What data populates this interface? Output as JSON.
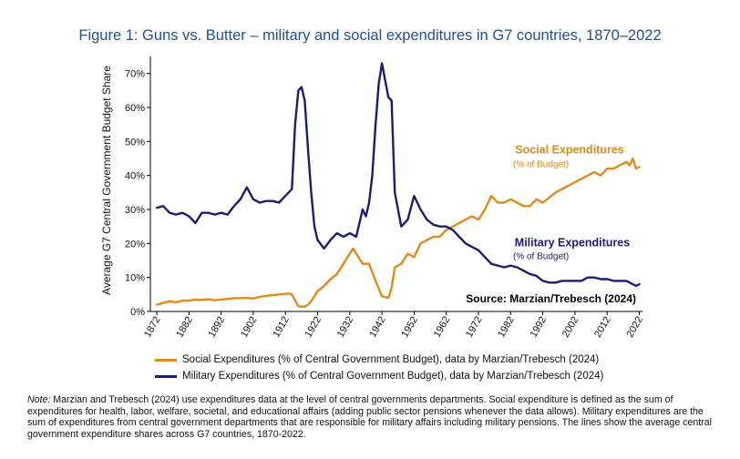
{
  "title": "Figure 1: Guns vs. Butter – military and social expenditures in G7 countries, 1870–2022",
  "legend": [
    {
      "label": "Social Expenditures (% of Central Government Budget), data by Marzian/Trebesch (2024)",
      "color": "#e08a1c"
    },
    {
      "label": "Military Expenditures (% of Central Government Budget), data by Marzian/Trebesch (2024)",
      "color": "#1c1c73"
    }
  ],
  "note": {
    "prefix": "Note:",
    "text": " Marzian and Trebesch (2024) use expenditures data at the level of central governments departments. Social expenditure is defined as the sum of expenditures for health, labor, welfare, societal, and educational affairs (adding public sector pensions whenever the data allows). Military expenditures are the sum of expenditures from central government departments that are responsible for military affairs including military pensions. The lines show the average central government expenditure shares across G7 countries, 1870-2022."
  },
  "chart_data": {
    "type": "line",
    "title": "Figure 1: Guns vs. Butter – military and social expenditures in G7 countries, 1870–2022",
    "xlabel": "",
    "ylabel": "Average G7 Central Government Budget Share",
    "xlim": [
      1870,
      2023
    ],
    "ylim": [
      0,
      75
    ],
    "x_ticks": [
      1872,
      1882,
      1892,
      1902,
      1912,
      1922,
      1932,
      1942,
      1952,
      1962,
      1972,
      1982,
      1992,
      2002,
      2012,
      2022
    ],
    "y_ticks": [
      0,
      10,
      20,
      30,
      40,
      50,
      60,
      70
    ],
    "y_tick_labels": [
      "0%",
      "10%",
      "20%",
      "30%",
      "40%",
      "50%",
      "60%",
      "70%"
    ],
    "grid": false,
    "source_label": "Source: Marzian/Trebesch (2024)",
    "series": [
      {
        "name": "Social Expenditures (% of Central Government Budget), data by Marzian/Trebesch (2024)",
        "color": "#e08a1c",
        "label": "Social Expenditures",
        "sublabel": "(% of Budget)",
        "x": [
          1872,
          1874,
          1876,
          1878,
          1880,
          1882,
          1884,
          1886,
          1888,
          1890,
          1892,
          1894,
          1896,
          1898,
          1900,
          1902,
          1904,
          1906,
          1908,
          1910,
          1912,
          1913,
          1914,
          1916,
          1918,
          1919,
          1920,
          1922,
          1924,
          1926,
          1928,
          1930,
          1932,
          1933,
          1934,
          1936,
          1938,
          1940,
          1942,
          1944,
          1945,
          1946,
          1948,
          1950,
          1952,
          1954,
          1956,
          1958,
          1960,
          1962,
          1964,
          1966,
          1968,
          1970,
          1972,
          1974,
          1976,
          1978,
          1980,
          1982,
          1984,
          1986,
          1988,
          1990,
          1992,
          1994,
          1996,
          1998,
          2000,
          2002,
          2004,
          2006,
          2008,
          2010,
          2012,
          2014,
          2016,
          2018,
          2019,
          2020,
          2021,
          2022
        ],
        "values": [
          2,
          2.5,
          3,
          2.7,
          3.2,
          3.2,
          3.5,
          3.4,
          3.6,
          3.3,
          3.5,
          3.7,
          3.9,
          3.9,
          4,
          3.8,
          4.3,
          4.6,
          4.8,
          5,
          5.2,
          5.3,
          5,
          1.5,
          1.4,
          2,
          3,
          6,
          7.5,
          9.5,
          11,
          14,
          17,
          18.5,
          17,
          14,
          14,
          9,
          4.5,
          4,
          7,
          13,
          14,
          17,
          16,
          20,
          21,
          22,
          22,
          24,
          25,
          26,
          27,
          28,
          27,
          30,
          34,
          32,
          32,
          33,
          32,
          31,
          31,
          33,
          32,
          33.5,
          35,
          36,
          37,
          38,
          39,
          40,
          41,
          40,
          42,
          42,
          43,
          44,
          43,
          45,
          42,
          42.5
        ]
      },
      {
        "name": "Military Expenditures (% of Central Government Budget), data by Marzian/Trebesch (2024)",
        "color": "#1c1c73",
        "label": "Military Expenditures",
        "sublabel": "(% of Budget)",
        "x": [
          1872,
          1874,
          1876,
          1878,
          1880,
          1882,
          1884,
          1886,
          1888,
          1890,
          1892,
          1894,
          1896,
          1898,
          1900,
          1902,
          1904,
          1906,
          1908,
          1910,
          1912,
          1913,
          1914,
          1915,
          1916,
          1917,
          1918,
          1919,
          1920,
          1921,
          1922,
          1924,
          1926,
          1928,
          1930,
          1932,
          1934,
          1936,
          1937,
          1938,
          1939,
          1940,
          1941,
          1942,
          1943,
          1944,
          1945,
          1946,
          1948,
          1950,
          1952,
          1954,
          1956,
          1958,
          1960,
          1962,
          1964,
          1966,
          1968,
          1970,
          1972,
          1974,
          1976,
          1978,
          1980,
          1982,
          1984,
          1986,
          1988,
          1990,
          1992,
          1994,
          1996,
          1998,
          2000,
          2002,
          2004,
          2006,
          2008,
          2010,
          2012,
          2014,
          2016,
          2018,
          2019,
          2020,
          2021,
          2022
        ],
        "values": [
          30.5,
          31,
          29,
          28.5,
          29,
          28,
          26,
          29,
          29,
          28.5,
          29,
          28.5,
          31,
          33,
          36.5,
          33,
          32,
          32.5,
          32.5,
          32,
          34,
          35,
          36,
          55,
          65,
          66,
          62,
          48,
          35,
          25,
          21,
          18.5,
          21,
          23,
          22,
          23,
          22,
          30,
          28,
          32,
          40,
          55,
          67,
          73,
          68,
          63,
          62,
          35,
          25,
          27,
          34,
          30,
          27,
          25.5,
          25,
          25,
          24,
          22,
          20,
          19,
          18,
          16,
          14,
          13.5,
          13,
          13.5,
          13,
          12,
          11,
          10.5,
          9,
          8.5,
          8.5,
          9,
          9,
          9,
          9,
          10,
          10,
          9.5,
          9.5,
          9,
          9,
          9,
          8.5,
          8,
          7.5,
          8
        ]
      }
    ]
  }
}
